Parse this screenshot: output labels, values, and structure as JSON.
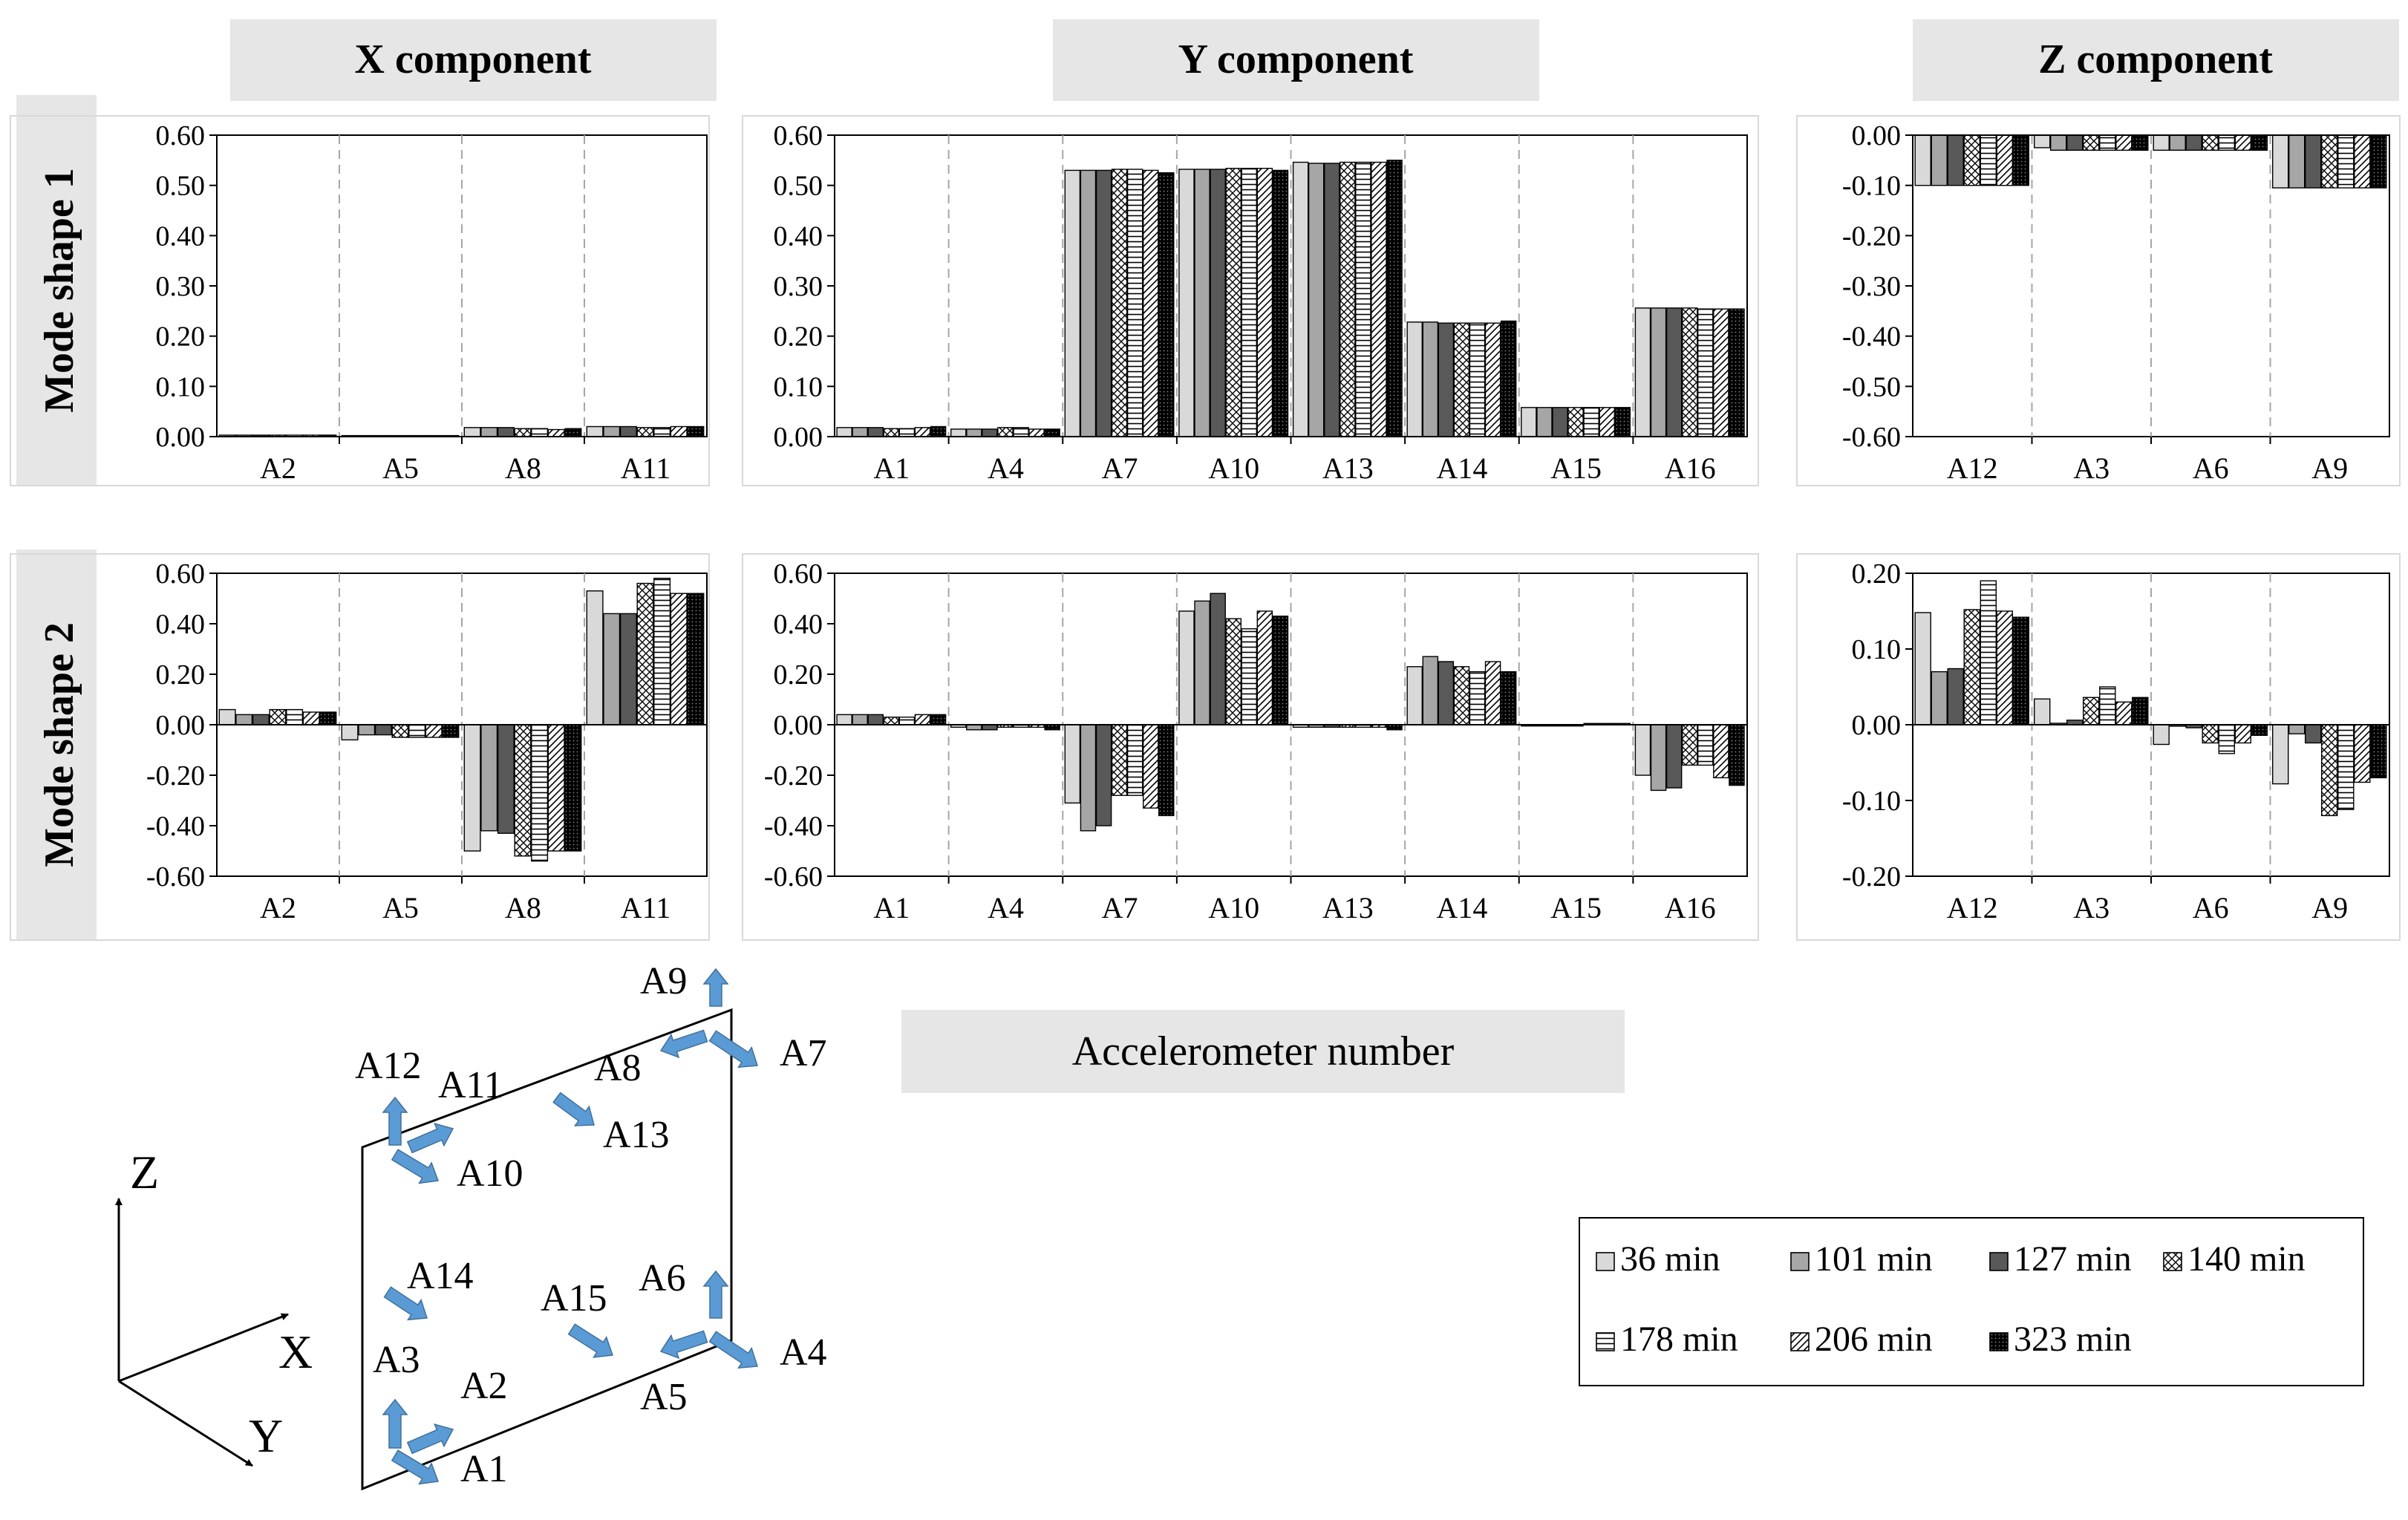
{
  "figure": {
    "column_titles": [
      "X component",
      "Y component",
      "Z component"
    ],
    "row_titles": [
      "Mode shape 1",
      "Mode shape 2"
    ],
    "xaxis_label": "Accelerometer number",
    "legend": [
      {
        "name": "36 min",
        "fill": "light-gray"
      },
      {
        "name": "101 min",
        "fill": "medium-gray"
      },
      {
        "name": "127 min",
        "fill": "dark-gray"
      },
      {
        "name": "140 min",
        "fill": "crosshatch"
      },
      {
        "name": "178 min",
        "fill": "horizontal-lines"
      },
      {
        "name": "206 min",
        "fill": "diagonal-lines"
      },
      {
        "name": "323 min",
        "fill": "black-dotted"
      }
    ],
    "colors": {
      "light_gray": "#d9d9d9",
      "medium_gray": "#a6a6a6",
      "dark_gray": "#595959",
      "arrow_blue": "#5b9bd5",
      "header_bg": "#e6e6e6"
    }
  },
  "chart_data": [
    {
      "type": "bar",
      "title": "X component",
      "row": "Mode shape 1",
      "ylim": [
        0,
        0.6
      ],
      "yticks": [
        "0.00",
        "0.10",
        "0.20",
        "0.30",
        "0.40",
        "0.50",
        "0.60"
      ],
      "categories": [
        "A2",
        "A5",
        "A8",
        "A11"
      ],
      "values": [
        [
          0.003,
          0.003,
          0.003,
          0.003,
          0.003,
          0.003,
          0.003
        ],
        [
          0.002,
          0.002,
          0.002,
          0.002,
          0.002,
          0.002,
          0.002
        ],
        [
          0.018,
          0.018,
          0.018,
          0.016,
          0.016,
          0.014,
          0.016
        ],
        [
          0.02,
          0.02,
          0.02,
          0.018,
          0.018,
          0.02,
          0.02
        ]
      ]
    },
    {
      "type": "bar",
      "title": "Y component",
      "row": "Mode shape 1",
      "ylim": [
        0,
        0.6
      ],
      "yticks": [
        "0.00",
        "0.10",
        "0.20",
        "0.30",
        "0.40",
        "0.50",
        "0.60"
      ],
      "categories": [
        "A1",
        "A4",
        "A7",
        "A10",
        "A13",
        "A14",
        "A15",
        "A16"
      ],
      "values": [
        [
          0.018,
          0.018,
          0.018,
          0.016,
          0.016,
          0.018,
          0.02
        ],
        [
          0.015,
          0.015,
          0.015,
          0.018,
          0.018,
          0.015,
          0.015
        ],
        [
          0.53,
          0.53,
          0.53,
          0.532,
          0.532,
          0.53,
          0.525
        ],
        [
          0.532,
          0.532,
          0.532,
          0.534,
          0.534,
          0.534,
          0.53
        ],
        [
          0.546,
          0.544,
          0.544,
          0.546,
          0.546,
          0.546,
          0.55
        ],
        [
          0.228,
          0.228,
          0.226,
          0.226,
          0.226,
          0.226,
          0.23
        ],
        [
          0.058,
          0.058,
          0.058,
          0.058,
          0.058,
          0.058,
          0.058
        ],
        [
          0.256,
          0.256,
          0.256,
          0.256,
          0.254,
          0.254,
          0.254
        ]
      ]
    },
    {
      "type": "bar",
      "title": "Z component",
      "row": "Mode shape 1",
      "ylim": [
        -0.6,
        0.0
      ],
      "yticks": [
        "-0.60",
        "-0.50",
        "-0.40",
        "-0.30",
        "-0.20",
        "-0.10",
        "0.00"
      ],
      "categories": [
        "A12",
        "A3",
        "A6",
        "A9"
      ],
      "values": [
        [
          -0.1,
          -0.1,
          -0.1,
          -0.1,
          -0.1,
          -0.1,
          -0.1
        ],
        [
          -0.025,
          -0.03,
          -0.03,
          -0.03,
          -0.03,
          -0.03,
          -0.03
        ],
        [
          -0.03,
          -0.03,
          -0.03,
          -0.03,
          -0.03,
          -0.03,
          -0.03
        ],
        [
          -0.105,
          -0.105,
          -0.105,
          -0.105,
          -0.105,
          -0.105,
          -0.105
        ]
      ]
    },
    {
      "type": "bar",
      "title": "X component",
      "row": "Mode shape 2",
      "ylim": [
        -0.6,
        0.6
      ],
      "yticks": [
        "-0.60",
        "-0.40",
        "-0.20",
        "0.00",
        "0.20",
        "0.40",
        "0.60"
      ],
      "categories": [
        "A2",
        "A5",
        "A8",
        "A11"
      ],
      "values": [
        [
          0.06,
          0.04,
          0.04,
          0.06,
          0.06,
          0.05,
          0.05
        ],
        [
          -0.06,
          -0.04,
          -0.04,
          -0.05,
          -0.05,
          -0.05,
          -0.05
        ],
        [
          -0.5,
          -0.42,
          -0.43,
          -0.52,
          -0.54,
          -0.5,
          -0.5
        ],
        [
          0.53,
          0.44,
          0.44,
          0.56,
          0.58,
          0.52,
          0.52
        ]
      ]
    },
    {
      "type": "bar",
      "title": "Y component",
      "row": "Mode shape 2",
      "ylim": [
        -0.6,
        0.6
      ],
      "yticks": [
        "-0.60",
        "-0.40",
        "-0.20",
        "0.00",
        "0.20",
        "0.40",
        "0.60"
      ],
      "categories": [
        "A1",
        "A4",
        "A7",
        "A10",
        "A13",
        "A14",
        "A15",
        "A16"
      ],
      "values": [
        [
          0.04,
          0.04,
          0.04,
          0.03,
          0.03,
          0.04,
          0.04
        ],
        [
          -0.01,
          -0.02,
          -0.02,
          -0.01,
          -0.01,
          -0.01,
          -0.02
        ],
        [
          -0.31,
          -0.42,
          -0.4,
          -0.28,
          -0.28,
          -0.33,
          -0.36
        ],
        [
          0.45,
          0.49,
          0.52,
          0.42,
          0.38,
          0.45,
          0.43
        ],
        [
          -0.01,
          -0.01,
          -0.01,
          -0.01,
          -0.01,
          -0.01,
          -0.02
        ],
        [
          0.23,
          0.27,
          0.25,
          0.23,
          0.21,
          0.25,
          0.21
        ],
        [
          -0.005,
          -0.005,
          -0.005,
          -0.005,
          0.005,
          0.005,
          0.005
        ],
        [
          -0.2,
          -0.26,
          -0.25,
          -0.16,
          -0.16,
          -0.21,
          -0.24
        ]
      ]
    },
    {
      "type": "bar",
      "title": "Z component",
      "row": "Mode shape 2",
      "ylim": [
        -0.2,
        0.2
      ],
      "yticks": [
        "-0.20",
        "-0.10",
        "0.00",
        "0.10",
        "0.20"
      ],
      "categories": [
        "A12",
        "A3",
        "A6",
        "A9"
      ],
      "values": [
        [
          0.148,
          0.07,
          0.074,
          0.152,
          0.19,
          0.15,
          0.142
        ],
        [
          0.034,
          0.002,
          0.006,
          0.036,
          0.05,
          0.03,
          0.036
        ],
        [
          -0.026,
          -0.002,
          -0.004,
          -0.024,
          -0.038,
          -0.024,
          -0.014
        ],
        [
          -0.078,
          -0.012,
          -0.024,
          -0.12,
          -0.112,
          -0.076,
          -0.07
        ]
      ]
    }
  ],
  "diagram": {
    "axes": {
      "z": "Z",
      "x": "X",
      "y": "Y"
    },
    "labels": [
      "A9",
      "A12",
      "A11",
      "A8",
      "A7",
      "A13",
      "A10",
      "A14",
      "A15",
      "A6",
      "A3",
      "A2",
      "A4",
      "A5",
      "A1"
    ]
  }
}
